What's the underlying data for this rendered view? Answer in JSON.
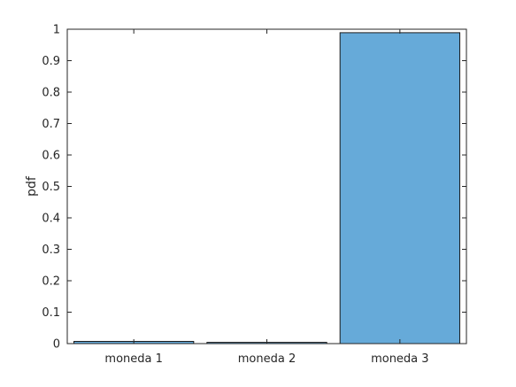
{
  "chart_data": {
    "type": "bar",
    "categories": [
      "moneda 1",
      "moneda 2",
      "moneda 3"
    ],
    "values": [
      0.007,
      0.004,
      0.989
    ],
    "title": "",
    "xlabel": "",
    "ylabel": "pdf",
    "ylim": [
      0,
      1
    ],
    "yticks": [
      0,
      0.1,
      0.2,
      0.3,
      0.4,
      0.5,
      0.6,
      0.7,
      0.8,
      0.9,
      1
    ],
    "ytick_labels": [
      "0",
      "0.1",
      "0.2",
      "0.3",
      "0.4",
      "0.5",
      "0.6",
      "0.7",
      "0.8",
      "0.9",
      "1"
    ],
    "grid": false,
    "bar_color": "#66aad9",
    "edge_color": "#1a1a1a",
    "axis_color": "#262626"
  }
}
